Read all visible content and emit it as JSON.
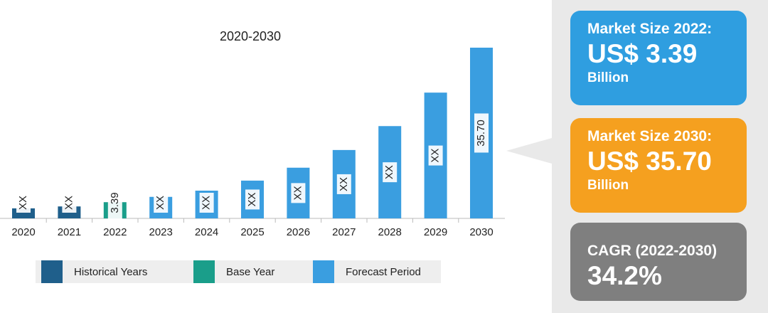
{
  "chart_data": {
    "type": "bar",
    "title": "2020-2030",
    "categories": [
      "2020",
      "2021",
      "2022",
      "2023",
      "2024",
      "2025",
      "2026",
      "2027",
      "2028",
      "2029",
      "2030"
    ],
    "series": [
      {
        "name": "Historical Years",
        "color": "#1f5f8b",
        "values": [
          2.1,
          2.5,
          null,
          null,
          null,
          null,
          null,
          null,
          null,
          null,
          null
        ],
        "value_labels": [
          "XX",
          "XX",
          null,
          null,
          null,
          null,
          null,
          null,
          null,
          null,
          null
        ]
      },
      {
        "name": "Base Year",
        "color": "#1a9e8a",
        "values": [
          null,
          null,
          3.39,
          null,
          null,
          null,
          null,
          null,
          null,
          null,
          null
        ],
        "value_labels": [
          null,
          null,
          "3.39",
          null,
          null,
          null,
          null,
          null,
          null,
          null,
          null
        ]
      },
      {
        "name": "Forecast Period",
        "color": "#3a9ee0",
        "values": [
          null,
          null,
          null,
          4.5,
          5.8,
          7.9,
          10.6,
          14.3,
          19.3,
          26.3,
          35.7
        ],
        "value_labels": [
          null,
          null,
          null,
          "XX",
          "XX",
          "XX",
          "XX",
          "XX",
          "XX",
          "XX",
          "35.70"
        ]
      }
    ]
  },
  "panel": {
    "cards": [
      {
        "title": "Market Size 2022:",
        "value": "US$ 3.39",
        "unit": "Billion",
        "color": "#2f9ee0"
      },
      {
        "title": "Market Size 2030:",
        "value": "US$ 35.70",
        "unit": "Billion",
        "color": "#f5a01f"
      },
      {
        "title": "CAGR (2022-2030)",
        "value": "34.2%",
        "color": "#7f7f7f"
      }
    ]
  }
}
